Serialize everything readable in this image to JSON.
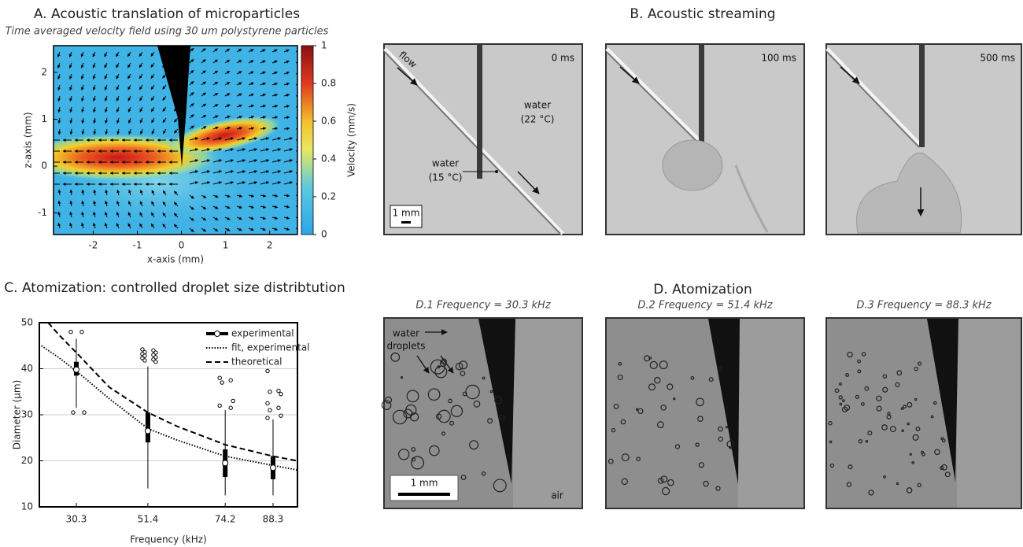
{
  "panel_a": {
    "title": "A. Acoustic translation of microparticles",
    "subtitle": "Time averaged velocity field using 30 um polystyrene particles",
    "xlabel": "x-axis (mm)",
    "ylabel": "z-axis (mm)",
    "colorbar_label": "Velocity (mm/s)",
    "xlim": [
      -2.9,
      2.63
    ],
    "xticks": [
      -2,
      -1,
      0,
      1,
      2
    ],
    "ylim": [
      -1.46,
      2.57
    ],
    "yticks": [
      -1,
      0,
      1,
      2
    ],
    "colorbar_lim": [
      0,
      1
    ],
    "colorbar_ticks": [
      0,
      0.2,
      0.4,
      0.6,
      0.8,
      1
    ]
  },
  "panel_b": {
    "title": "B. Acoustic streaming",
    "frames": [
      "0 ms",
      "100 ms",
      "500 ms"
    ],
    "flow_label": "flow",
    "water_warm": "water",
    "water_warm_temp": "(22 °C)",
    "water_cold": "water",
    "water_cold_temp": "(15 °C)",
    "scale_bar": "1 mm"
  },
  "panel_d": {
    "title": "D. Atomization",
    "frames": [
      "D.1 Frequency = 30.3 kHz",
      "D.2 Frequency = 51.4 kHz",
      "D.3 Frequency = 88.3 kHz"
    ],
    "droplets_label_line1": "water",
    "droplets_label_line2": "droplets",
    "scale_bar": "1 mm",
    "medium_label": "air"
  },
  "chart_data": {
    "type": "box",
    "title": "C. Atomization: controlled droplet size distribtution",
    "xlabel": "Frequency (kHz)",
    "ylabel": "Diameter (µm)",
    "xlim": [
      19.4,
      95.5
    ],
    "xticks": [
      30.3,
      51.4,
      74.2,
      88.3
    ],
    "ylim": [
      10,
      50
    ],
    "yticks": [
      10,
      20,
      30,
      40,
      50
    ],
    "grid": true,
    "box_series": {
      "name": "experimental",
      "color": "#000000",
      "boxes": [
        {
          "x": 30.3,
          "whisker_low": 31.5,
          "q1": 38.5,
          "median": 39.8,
          "q3": 41.5,
          "whisker_high": 46.5,
          "outliers": [
            48,
            48,
            30.5,
            30.5
          ]
        },
        {
          "x": 51.4,
          "whisker_low": 14,
          "q1": 24,
          "median": 26.5,
          "q3": 30.5,
          "whisker_high": 40.5,
          "outliers": [
            44.2,
            44,
            43.6,
            43.5,
            43.2,
            43,
            42.8,
            42.5,
            42.3,
            42,
            41.8,
            41.5
          ]
        },
        {
          "x": 74.2,
          "whisker_low": 12.5,
          "q1": 16.5,
          "median": 19.5,
          "q3": 22.5,
          "whisker_high": 31,
          "outliers": [
            38,
            37.5,
            37,
            33,
            32,
            31.5
          ]
        },
        {
          "x": 88.3,
          "whisker_low": 12.5,
          "q1": 16,
          "median": 18.5,
          "q3": 21,
          "whisker_high": 29,
          "outliers": [
            39.5,
            35.2,
            35,
            34.5,
            32.5,
            31.5,
            31,
            29.8,
            29.3
          ]
        }
      ]
    },
    "line_series": [
      {
        "name": "fit, experimental",
        "style": "dotted",
        "color": "#000000",
        "x": [
          20,
          25,
          30.3,
          40,
          51.4,
          60,
          74.2,
          88.3,
          95.5
        ],
        "values": [
          45,
          42.5,
          39.5,
          33.5,
          27,
          24.5,
          21,
          19,
          18
        ]
      },
      {
        "name": "theoretical",
        "style": "dashed",
        "color": "#000000",
        "x": [
          22,
          25,
          30.3,
          40,
          51.4,
          60,
          74.2,
          88.3,
          95.5
        ],
        "values": [
          50,
          47.5,
          43.5,
          36,
          30.5,
          27.5,
          23.5,
          21,
          20
        ]
      }
    ]
  }
}
